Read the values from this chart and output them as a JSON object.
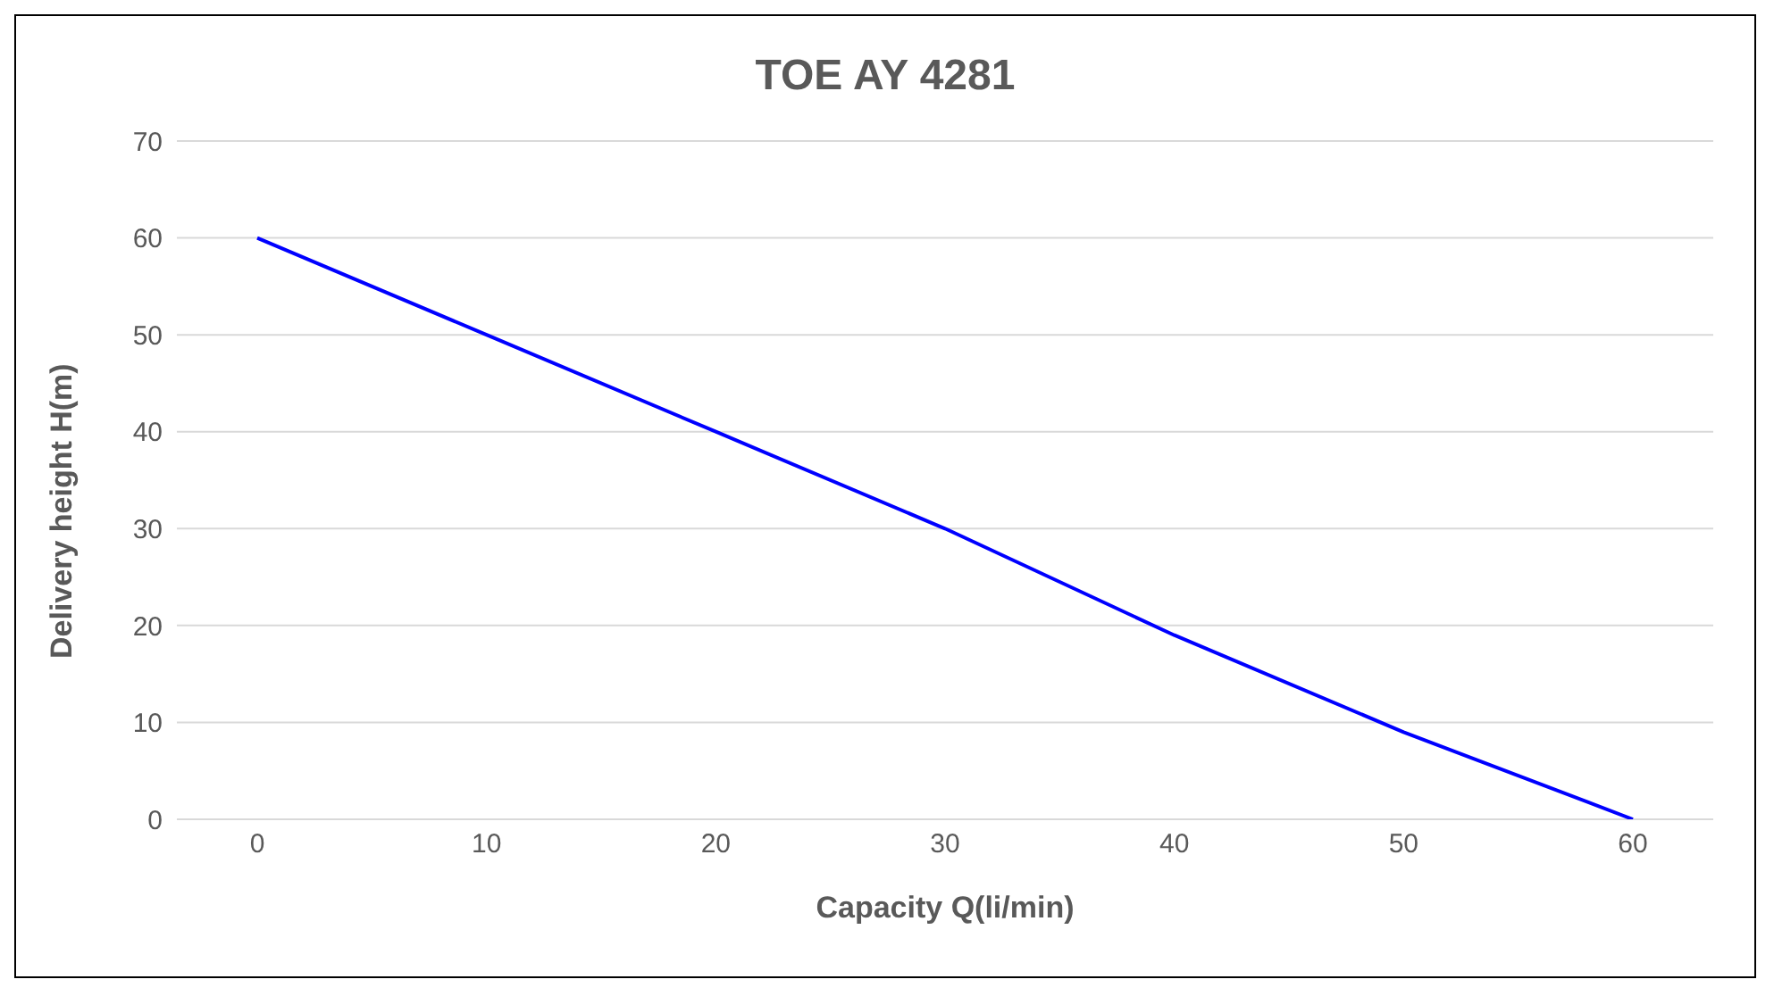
{
  "chart_data": {
    "type": "line",
    "title": "TOE AY 4281",
    "xlabel": "Capacity Q(li/min)",
    "ylabel": "Delivery height H(m)",
    "categories": [
      "0",
      "10",
      "20",
      "30",
      "40",
      "50",
      "60"
    ],
    "series": [
      {
        "color": "#0000ff",
        "values": [
          60,
          50,
          40,
          30,
          19,
          9,
          0
        ]
      }
    ],
    "ylim": [
      0,
      70
    ],
    "yticks": [
      0,
      10,
      20,
      30,
      40,
      50,
      60,
      70
    ],
    "grid": "y",
    "marker": "none",
    "line_style": "solid"
  }
}
